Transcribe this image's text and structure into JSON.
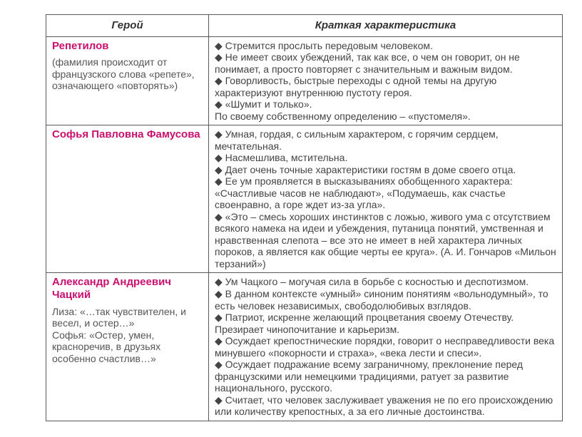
{
  "headers": {
    "hero": "Герой",
    "desc": "Краткая характеристика"
  },
  "rows": [
    {
      "hero_name": "Репетилов",
      "hero_note": "(фамилия происходит от французского слова «репете», означающего «повторять»)",
      "points": [
        {
          "type": "bullet",
          "text": "Стремится прослыть передовым человеком."
        },
        {
          "type": "bullet",
          "text": "Не имеет своих убеждений, так как все, о чем он говорит, он не понимает, а просто повторяет с значительным и важным видом."
        },
        {
          "type": "bullet",
          "text": "Говорливость, быстрые переходы с одной темы на другую характеризуют внутреннюю пустоту героя."
        },
        {
          "type": "bullet",
          "text": "«Шумит и только»."
        },
        {
          "type": "plain",
          "text": "По своему собственному определению – «пустомеля»."
        }
      ]
    },
    {
      "hero_name": "Софья Павловна Фамусова",
      "hero_note": "",
      "points": [
        {
          "type": "bullet",
          "text": "Умная, гордая, с сильным характером, с горячим сердцем, мечтательная."
        },
        {
          "type": "bullet",
          "text": "Насмешлива, мстительна."
        },
        {
          "type": "bullet",
          "text": "Дает очень точные характеристики гостям в доме своего отца."
        },
        {
          "type": "bullet",
          "text": "Ее ум проявляется в высказываниях обобщенного характера: «Счастливые часов не наблюдают», «Подумаешь, как счастье своенравно, а горе ждет из-за угла»."
        },
        {
          "type": "bullet",
          "text": "«Это – смесь хороших инстинктов с ложью, живого ума с отсутствием всякого намека на идеи и убеждения, путаница понятий, умственная и нравственная слепота – все это не имеет в ней характера личных пороков, а является как общие черты ее круга». (А. И. Гончаров «Мильон терзаний»)"
        }
      ]
    },
    {
      "hero_name": "Александр Андреевич Чацкий",
      "hero_note": "Лиза:  «…так  чувствителен, и весел, и остер…»\nСофья: «Остер, умен, красноречив, в друзьях особенно счастлив…»",
      "points": [
        {
          "type": "bullet",
          "text": "Ум Чацкого – могучая сила в борьбе с  косностью и деспотизмом."
        },
        {
          "type": "bullet",
          "text": "В данном контексте «умный» синоним понятиям «вольнодумный», то есть человек независимых, свободолюбивых взглядов."
        },
        {
          "type": "bullet",
          "text": "Патриот, искренне желающий процветания своему Отечеству. Презирает чинопочитание и карьеризм."
        },
        {
          "type": "bullet",
          "text": "Осуждает крепостнические порядки, говорит о несправедливости века минувшего «покорности и страха», «века лести и спеси»."
        },
        {
          "type": "bullet",
          "text": "Осуждает подражание всему заграничному, преклонение перед французскими или немецкими традициями, ратует за развитие национального, русского."
        },
        {
          "type": "bullet",
          "text": "Считает, что человек заслуживает уважения не по его происхождению или количеству крепостных, а за его личные достоинства."
        }
      ]
    }
  ]
}
